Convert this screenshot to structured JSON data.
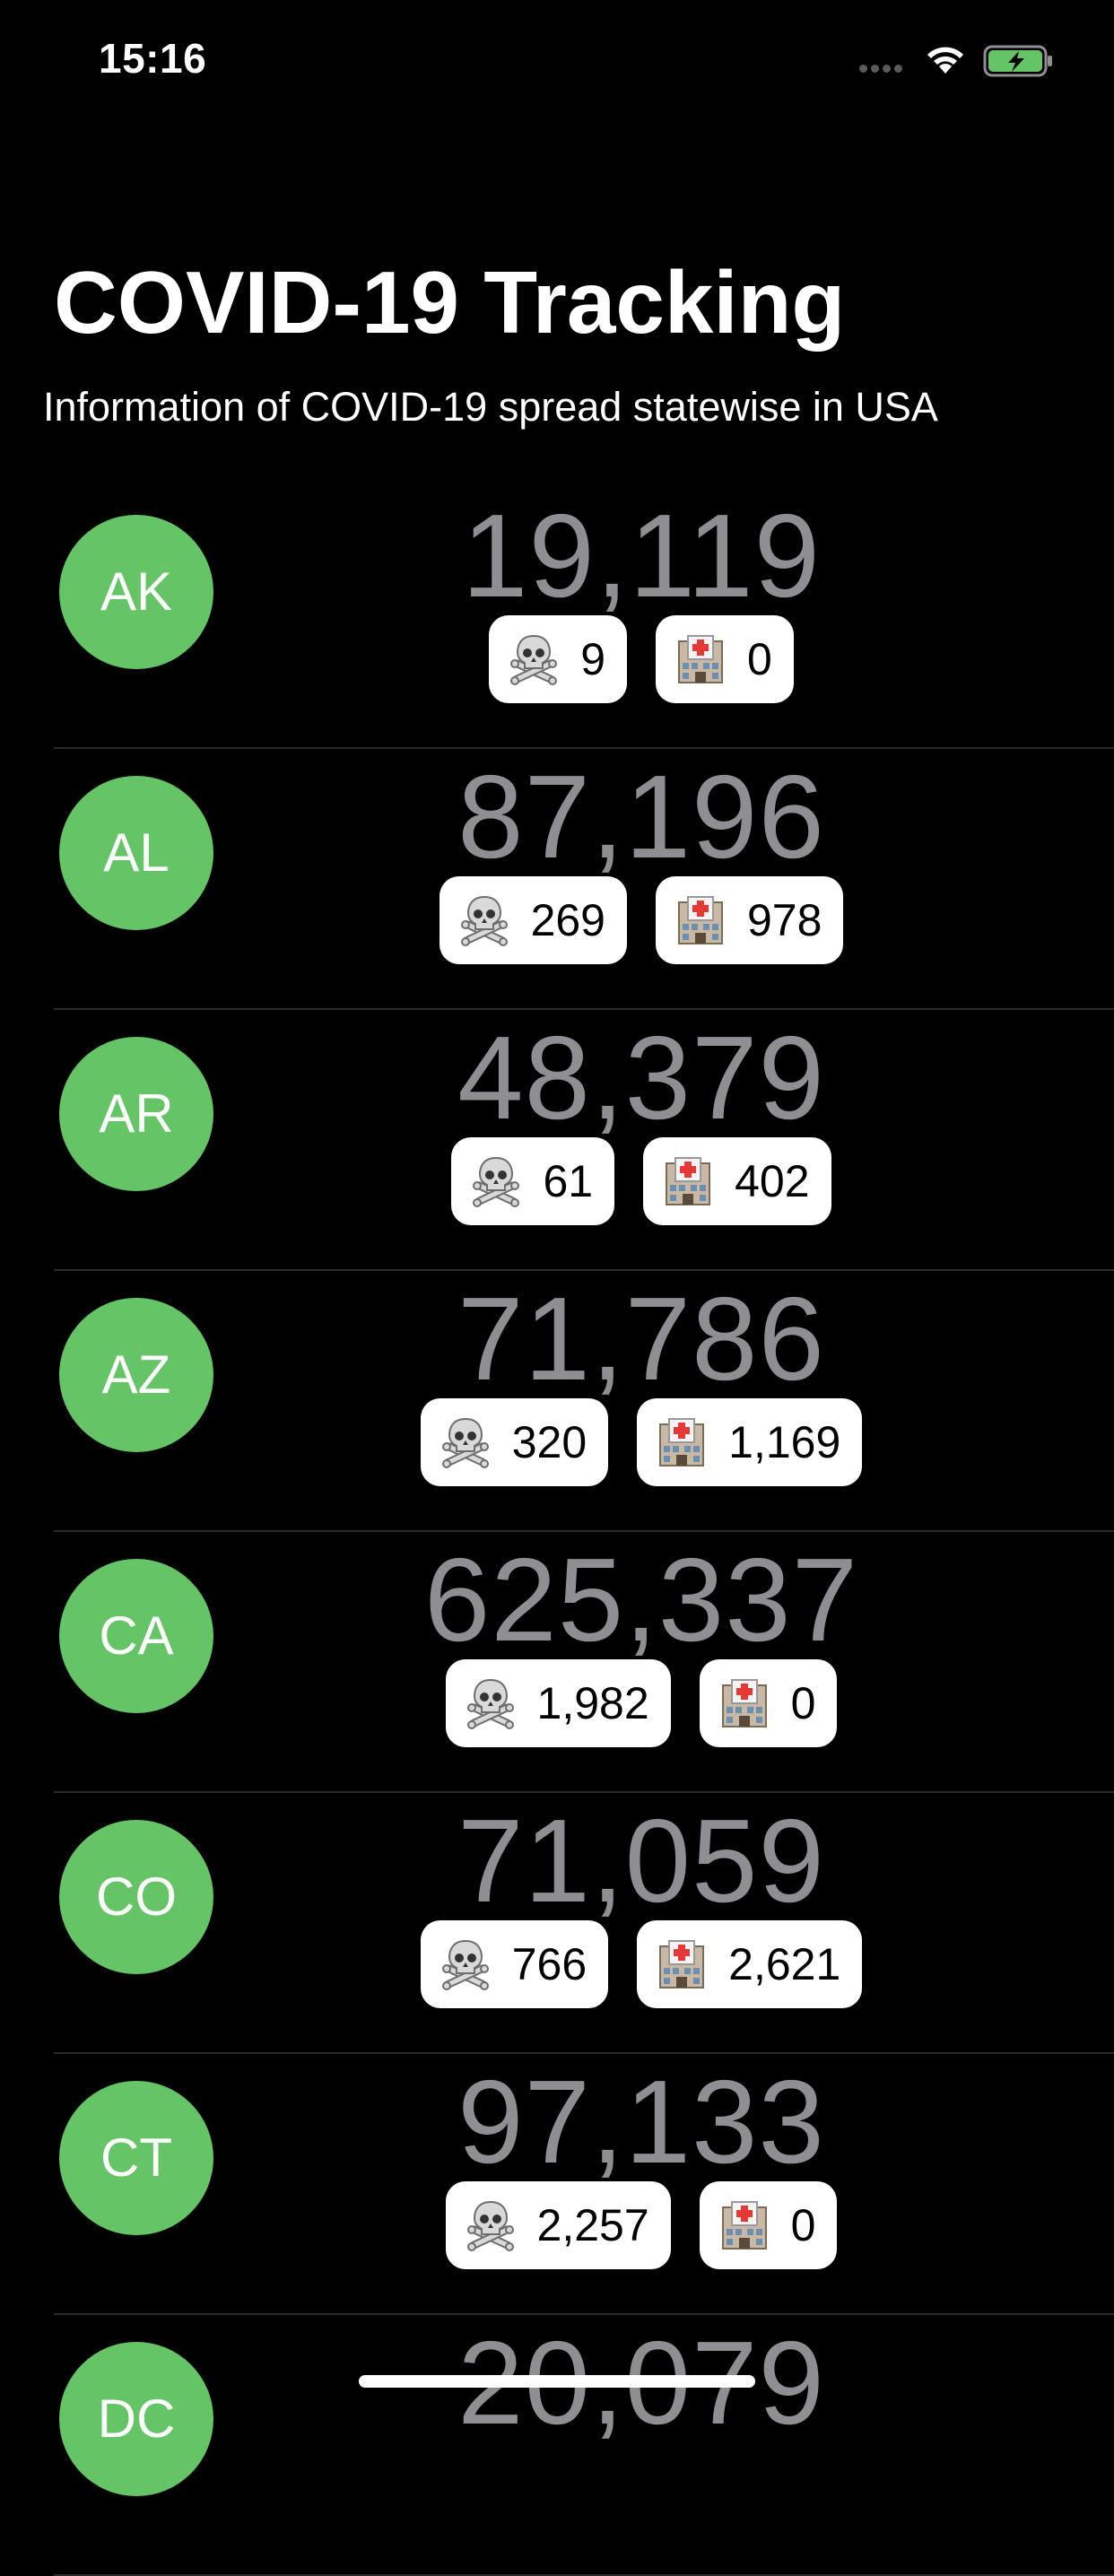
{
  "status_bar": {
    "time": "15:16",
    "icons": [
      "signal-dots-icon",
      "wifi-icon",
      "battery-charging-icon"
    ],
    "battery_color": "#65c466"
  },
  "header": {
    "title": "COVID-19 Tracking",
    "subtitle": "Information of COVID-19 spread statewise in USA"
  },
  "colors": {
    "background": "#000000",
    "avatar": "#65c466",
    "case_count": "#8e8e93",
    "badge_background": "#ffffff"
  },
  "badge_icons": {
    "deaths": "skull-crossbones-icon",
    "hospitalized": "hospital-icon"
  },
  "states": [
    {
      "code": "AK",
      "cases": "19,119",
      "deaths": "9",
      "hospitalized": "0"
    },
    {
      "code": "AL",
      "cases": "87,196",
      "deaths": "269",
      "hospitalized": "978"
    },
    {
      "code": "AR",
      "cases": "48,379",
      "deaths": "61",
      "hospitalized": "402"
    },
    {
      "code": "AZ",
      "cases": "71,786",
      "deaths": "320",
      "hospitalized": "1,169"
    },
    {
      "code": "CA",
      "cases": "625,337",
      "deaths": "1,982",
      "hospitalized": "0"
    },
    {
      "code": "CO",
      "cases": "71,059",
      "deaths": "766",
      "hospitalized": "2,621"
    },
    {
      "code": "CT",
      "cases": "97,133",
      "deaths": "2,257",
      "hospitalized": "0"
    },
    {
      "code": "DC",
      "cases": "20,079"
    }
  ]
}
